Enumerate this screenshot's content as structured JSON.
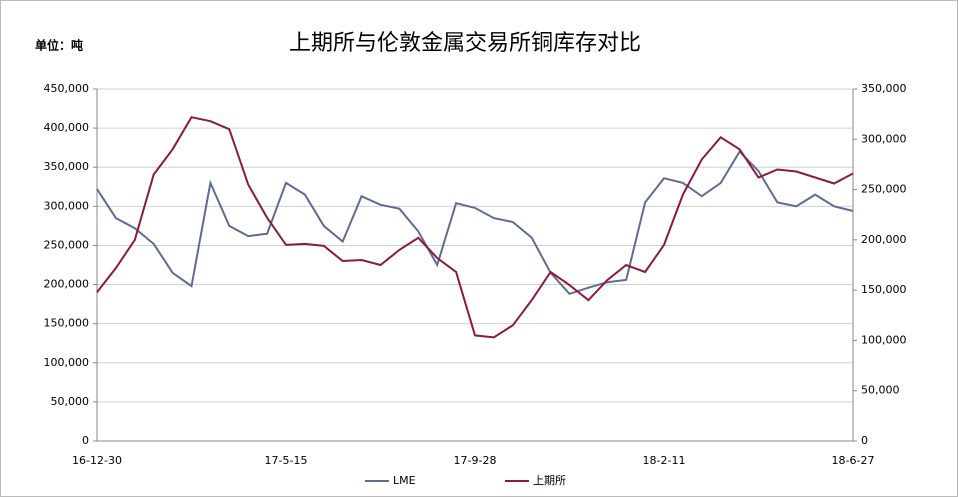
{
  "chart_data": {
    "type": "line",
    "title": "上期所与伦敦金属交易所铜库存对比",
    "unit_label": "单位：吨",
    "categories": [
      "16-12-30",
      null,
      null,
      null,
      null,
      null,
      null,
      null,
      null,
      null,
      "17-5-15",
      null,
      null,
      null,
      null,
      null,
      null,
      null,
      null,
      null,
      "17-9-28",
      null,
      null,
      null,
      null,
      null,
      null,
      null,
      null,
      null,
      "18-2-11",
      null,
      null,
      null,
      null,
      null,
      null,
      null,
      null,
      null,
      "18-6-27"
    ],
    "series": [
      {
        "name": "LME",
        "color": "#5f6b96",
        "values": [
          322000,
          285000,
          272000,
          252000,
          215000,
          198000,
          330000,
          275000,
          262000,
          265000,
          330000,
          315000,
          275000,
          255000,
          313000,
          302000,
          297000,
          268000,
          225000,
          304000,
          298000,
          285000,
          280000,
          260000,
          215000,
          188000,
          196000,
          203000,
          206000,
          305000,
          336000,
          330000,
          313000,
          330000,
          370000,
          345000,
          305000,
          300000,
          315000,
          300000,
          294000
        ]
      },
      {
        "name": "上期所",
        "color": "#8b1a3e",
        "axis": "y2",
        "values": [
          148000,
          172000,
          200000,
          265000,
          290000,
          322000,
          318000,
          310000,
          255000,
          222000,
          195000,
          196000,
          194000,
          179000,
          180000,
          175000,
          190000,
          202000,
          182000,
          168000,
          105000,
          103000,
          115000,
          140000,
          168000,
          155000,
          140000,
          160000,
          175000,
          168000,
          195000,
          245000,
          280000,
          302000,
          290000,
          262000,
          270000,
          268000,
          262000,
          256000,
          266000
        ]
      }
    ],
    "ylim": [
      0,
      450000
    ],
    "yticks": [
      0,
      {
        "value": 50000,
        "label": "50,000"
      },
      {
        "value": 100000,
        "label": "100,000"
      },
      {
        "value": 150000,
        "label": "150,000"
      },
      {
        "value": 200000,
        "label": "200,000"
      },
      {
        "value": 250000,
        "label": "250,000"
      },
      {
        "value": 300000,
        "label": "300,000"
      },
      {
        "value": 350000,
        "label": "350,000"
      },
      {
        "value": 400000,
        "label": "400,000"
      },
      {
        "value": 450000,
        "label": "450,000"
      }
    ],
    "y2lim": [
      0,
      350000
    ],
    "y2ticks": [
      0,
      {
        "value": 50000,
        "label": "50,000"
      },
      {
        "value": 100000,
        "label": "100,000"
      },
      {
        "value": 150000,
        "label": "150,000"
      },
      {
        "value": 200000,
        "label": "200,000"
      },
      {
        "value": 250000,
        "label": "250,000"
      },
      {
        "value": 300000,
        "label": "300,000"
      },
      {
        "value": 350000,
        "label": "350,000"
      }
    ],
    "grid": true,
    "legend": "bottom"
  }
}
